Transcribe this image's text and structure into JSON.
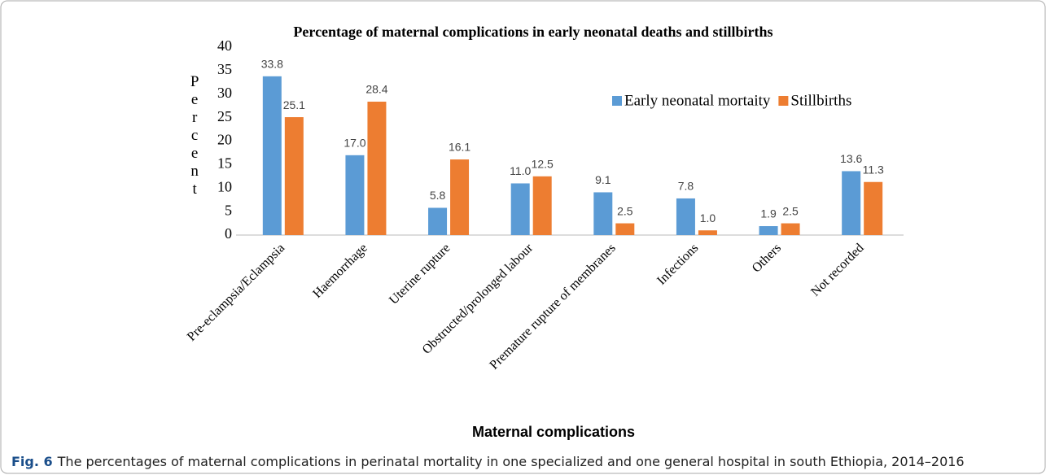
{
  "chart_data": {
    "type": "bar",
    "title": "Percentage of maternal complications in early neonatal deaths and stillbirths",
    "ylabel": "Percent",
    "xlabel": "Maternal complications",
    "categories": [
      "Pre-eclampsia/Eclampsia",
      "Haemorrhage",
      "Uterine rupture",
      "Obstructed/prolonged labour",
      "Premature rupture of membranes",
      "Infections",
      "Others",
      "Not recorded"
    ],
    "series": [
      {
        "name": "Early neonatal mortaity",
        "color": "#5b9bd5",
        "values": [
          33.8,
          17.0,
          5.8,
          11.0,
          9.1,
          7.8,
          1.9,
          13.6
        ],
        "value_labels": [
          "33.8",
          "17.0",
          "5.8",
          "11.0",
          "9.1",
          "7.8",
          "1.9",
          "13.6"
        ]
      },
      {
        "name": "Stillbirths",
        "color": "#ed7d31",
        "values": [
          25.1,
          28.4,
          16.1,
          12.5,
          2.5,
          1.0,
          2.5,
          11.3
        ],
        "value_labels": [
          "25.1",
          "28.4",
          "16.1",
          "12.5",
          "2.5",
          "1.0",
          "2.5",
          "11.3"
        ]
      }
    ],
    "ylim": [
      0,
      40
    ],
    "yticks": [
      0,
      5,
      10,
      15,
      20,
      25,
      30,
      35,
      40
    ],
    "grid": false,
    "legend": "top-right"
  },
  "caption": {
    "label": "Fig. 6",
    "text": "The percentages of maternal complications in perinatal mortality in one specialized and one general hospital in south Ethiopia, 2014–2016"
  }
}
